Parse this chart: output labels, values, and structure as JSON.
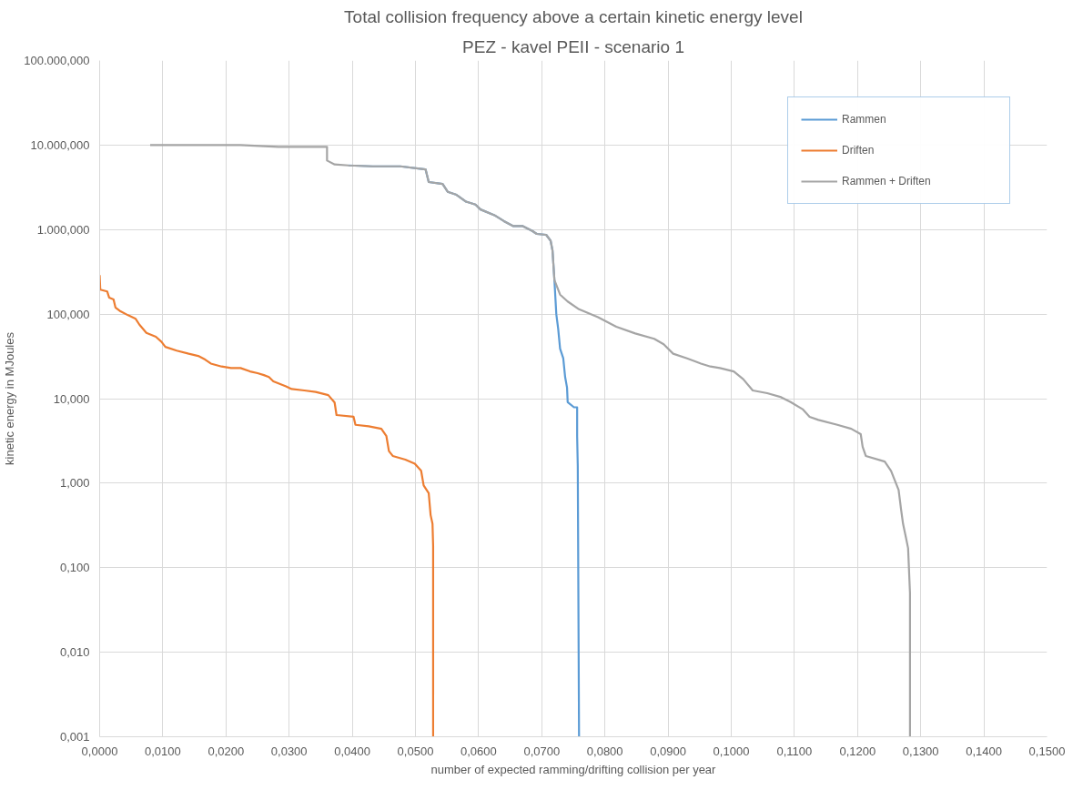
{
  "chart_data": {
    "type": "line",
    "title": "Total collision frequency above a certain kinetic energy level",
    "subtitle": "PEZ - kavel PEII - scenario 1",
    "xlabel": "number of expected ramming/drifting collision per year",
    "ylabel": "kinetic energy in MJoules",
    "log": "y",
    "grid": true,
    "legend": "top right",
    "marker": "none",
    "line_style": "solid",
    "xlim": [
      0,
      0.15
    ],
    "ylim": [
      0.001,
      100000
    ],
    "xticks": [
      {
        "value": 0,
        "label": "0,0000"
      },
      {
        "value": 0.01,
        "label": "0,0100"
      },
      {
        "value": 0.02,
        "label": "0,0200"
      },
      {
        "value": 0.03,
        "label": "0,0300"
      },
      {
        "value": 0.04,
        "label": "0,0400"
      },
      {
        "value": 0.05,
        "label": "0,0500"
      },
      {
        "value": 0.06,
        "label": "0,0600"
      },
      {
        "value": 0.07,
        "label": "0,0700"
      },
      {
        "value": 0.08,
        "label": "0,0800"
      },
      {
        "value": 0.09,
        "label": "0,0900"
      },
      {
        "value": 0.1,
        "label": "0,1000"
      },
      {
        "value": 0.11,
        "label": "0,1100"
      },
      {
        "value": 0.12,
        "label": "0,1200"
      },
      {
        "value": 0.13,
        "label": "0,1300"
      },
      {
        "value": 0.14,
        "label": "0,1400"
      },
      {
        "value": 0.15,
        "label": "0,1500"
      }
    ],
    "yticks": [
      {
        "value": 0.001,
        "label": "0,001"
      },
      {
        "value": 0.01,
        "label": "0,010"
      },
      {
        "value": 0.1,
        "label": "0,100"
      },
      {
        "value": 1,
        "label": "1,000"
      },
      {
        "value": 10,
        "label": "10,000"
      },
      {
        "value": 100,
        "label": "100,000"
      },
      {
        "value": 1000,
        "label": "1.000,000"
      },
      {
        "value": 10000,
        "label": "10.000,000"
      },
      {
        "value": 100000,
        "label": "100.000,000"
      }
    ],
    "series": [
      {
        "name": "Rammen",
        "color": "#5b9bd5",
        "x": [
          0.0394,
          0.0432,
          0.0476,
          0.0516,
          0.0521,
          0.0543,
          0.0551,
          0.0565,
          0.058,
          0.0595,
          0.0603,
          0.0625,
          0.064,
          0.0655,
          0.067,
          0.0685,
          0.0692,
          0.0707,
          0.0714,
          0.0717,
          0.0719,
          0.072,
          0.0723,
          0.0726,
          0.0729,
          0.0734,
          0.0737,
          0.074,
          0.0741,
          0.0751,
          0.0756,
          0.0756,
          0.0757,
          0.0759
        ],
        "values": [
          5740,
          5600,
          5600,
          5160,
          3650,
          3460,
          2800,
          2580,
          2140,
          1980,
          1730,
          1480,
          1260,
          1100,
          1100,
          964,
          889,
          867,
          738,
          565,
          332,
          254,
          100,
          67,
          39,
          30,
          18,
          13.5,
          9.1,
          7.9,
          7.9,
          3.6,
          1.6,
          0.001
        ]
      },
      {
        "name": "Driften",
        "color": "#ed7d31",
        "x": [
          0,
          0.0001,
          0.0012,
          0.0015,
          0.0022,
          0.0025,
          0.0033,
          0.0045,
          0.0057,
          0.0063,
          0.0074,
          0.0089,
          0.0098,
          0.0104,
          0.0122,
          0.0141,
          0.0156,
          0.0167,
          0.0176,
          0.0193,
          0.0208,
          0.0223,
          0.0238,
          0.025,
          0.026,
          0.0268,
          0.0275,
          0.0295,
          0.0304,
          0.0324,
          0.0342,
          0.0362,
          0.0372,
          0.0375,
          0.0402,
          0.0405,
          0.0426,
          0.0446,
          0.0454,
          0.0458,
          0.0464,
          0.0484,
          0.0499,
          0.0509,
          0.0513,
          0.0521,
          0.0524,
          0.0527,
          0.0528,
          0.0528
        ],
        "values": [
          290,
          195,
          185,
          157,
          149,
          120,
          108,
          97,
          88,
          75,
          60,
          54,
          47,
          41,
          37,
          34,
          32,
          29,
          26,
          24,
          23,
          23,
          21,
          20,
          19,
          18,
          16,
          14,
          13,
          12.5,
          12,
          11,
          9,
          6.4,
          6.1,
          4.9,
          4.7,
          4.4,
          3.6,
          2.4,
          2.1,
          1.9,
          1.7,
          1.4,
          0.94,
          0.76,
          0.42,
          0.33,
          0.18,
          0.001
        ]
      },
      {
        "name": "Rammen + Driften",
        "color": "#a5a5a5",
        "x": [
          0.008,
          0.0223,
          0.0283,
          0.036,
          0.036,
          0.0372,
          0.0394,
          0.0432,
          0.0476,
          0.0516,
          0.0521,
          0.0543,
          0.0551,
          0.0565,
          0.058,
          0.0595,
          0.0603,
          0.0625,
          0.064,
          0.0655,
          0.067,
          0.0685,
          0.0692,
          0.0707,
          0.0714,
          0.0717,
          0.0719,
          0.072,
          0.0729,
          0.0741,
          0.0759,
          0.0789,
          0.0818,
          0.0848,
          0.0878,
          0.0893,
          0.0908,
          0.093,
          0.0952,
          0.0967,
          0.0982,
          0.1004,
          0.1019,
          0.1034,
          0.1057,
          0.1079,
          0.1094,
          0.1113,
          0.1124,
          0.1138,
          0.1168,
          0.119,
          0.1205,
          0.1208,
          0.1213,
          0.1243,
          0.1253,
          0.1265,
          0.1269,
          0.1272,
          0.1277,
          0.128,
          0.1283,
          0.1283
        ],
        "values": [
          10000,
          10000,
          9530,
          9530,
          6560,
          5900,
          5740,
          5600,
          5600,
          5160,
          3650,
          3460,
          2800,
          2580,
          2140,
          1980,
          1730,
          1480,
          1260,
          1100,
          1100,
          964,
          889,
          867,
          738,
          565,
          332,
          254,
          170,
          141,
          114,
          92,
          71,
          59,
          51,
          44,
          34,
          30,
          26,
          24,
          23,
          21,
          17,
          12.5,
          11.6,
          10.4,
          9.1,
          7.5,
          6.1,
          5.6,
          4.9,
          4.4,
          3.8,
          2.7,
          2.1,
          1.8,
          1.4,
          0.83,
          0.48,
          0.33,
          0.22,
          0.17,
          0.05,
          0.001
        ]
      }
    ]
  }
}
